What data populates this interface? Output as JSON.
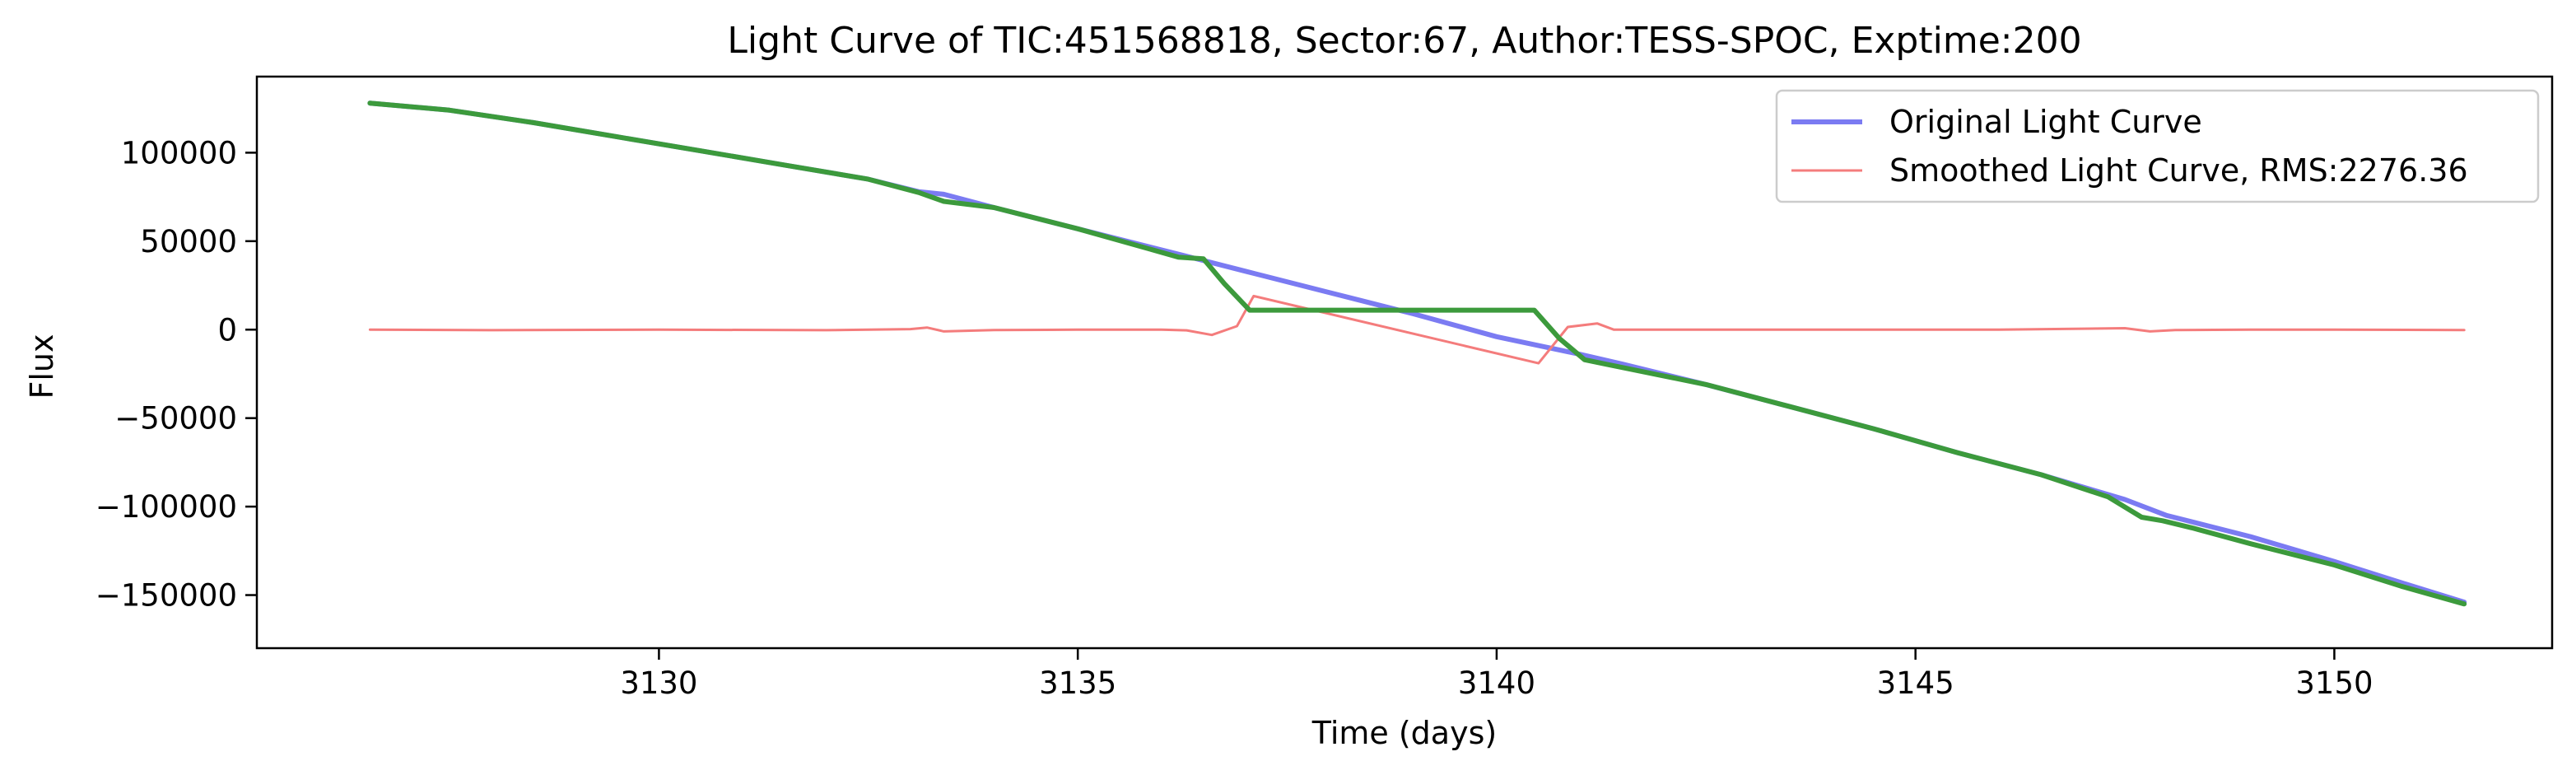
{
  "chart_data": {
    "type": "line",
    "title": "Light Curve of TIC:451568818, Sector:67, Author:TESS-SPOC, Exptime:200",
    "xlabel": "Time (days)",
    "ylabel": "Flux",
    "xlim": [
      3125.2,
      3152.6
    ],
    "ylim": [
      -180000,
      143000
    ],
    "xticks": [
      3130,
      3135,
      3140,
      3145,
      3150
    ],
    "xtick_labels": [
      "3130",
      "3135",
      "3140",
      "3145",
      "3150"
    ],
    "yticks": [
      100000,
      50000,
      0,
      -50000,
      -100000,
      -150000
    ],
    "ytick_labels": [
      "100000",
      "50000",
      "0",
      "−50000",
      "−100000",
      "−150000"
    ],
    "grid": false,
    "legend_position": "top-right",
    "series": [
      {
        "name": "Original Light Curve",
        "color": "#7b7bf2",
        "x": [
          3126.55,
          3127.5,
          3128.5,
          3129.5,
          3130.5,
          3131.5,
          3132.5,
          3133.1,
          3133.4,
          3134.0,
          3135.0,
          3136.3,
          3137.0,
          3138.0,
          3139.0,
          3140.0,
          3141.0,
          3141.5,
          3142.5,
          3143.5,
          3144.5,
          3145.5,
          3146.5,
          3147.5,
          3148.0,
          3149.0,
          3150.0,
          3150.8,
          3151.55
        ],
        "y": [
          128000,
          124000,
          117000,
          109000,
          101000,
          93000,
          85000,
          78000,
          76500,
          69000,
          57000,
          41500,
          33000,
          21000,
          9000,
          -4000,
          -14000,
          -19500,
          -31000,
          -43500,
          -56000,
          -69500,
          -82000,
          -96000,
          -105000,
          -117000,
          -131000,
          -143000,
          -154000
        ]
      },
      {
        "name": "Smoothed Light Curve, RMS:2276.36",
        "color": "#f47c7c",
        "x": [
          3126.55,
          3128.0,
          3130.0,
          3132.0,
          3133.0,
          3133.2,
          3133.4,
          3134.0,
          3135.0,
          3136.0,
          3136.3,
          3136.6,
          3136.9,
          3137.1,
          3140.5,
          3140.85,
          3141.2,
          3141.4,
          3142.0,
          3144.0,
          3146.0,
          3147.5,
          3147.8,
          3148.1,
          3149.0,
          3150.0,
          3151.55
        ],
        "y": [
          0,
          -300,
          0,
          -300,
          300,
          1200,
          -1000,
          -200,
          0,
          0,
          -400,
          -3000,
          2000,
          19000,
          -19000,
          1500,
          3500,
          0,
          0,
          0,
          0,
          800,
          -1000,
          -200,
          0,
          0,
          -200
        ]
      },
      {
        "name": "",
        "color": "#3c9a3c",
        "x": [
          3126.55,
          3127.5,
          3128.5,
          3129.5,
          3130.5,
          3131.5,
          3132.5,
          3133.1,
          3133.4,
          3134.0,
          3135.0,
          3136.2,
          3136.5,
          3136.75,
          3137.05,
          3138.0,
          3139.0,
          3140.0,
          3140.45,
          3140.75,
          3141.05,
          3141.3,
          3142.5,
          3143.5,
          3144.5,
          3145.5,
          3146.5,
          3147.3,
          3147.7,
          3147.95,
          3148.3,
          3149.0,
          3150.0,
          3150.8,
          3151.55
        ],
        "y": [
          128000,
          124000,
          117000,
          109000,
          101000,
          93000,
          85000,
          77500,
          72500,
          69000,
          57000,
          41000,
          40000,
          26000,
          11000,
          11000,
          11000,
          11000,
          11000,
          -5000,
          -17000,
          -19500,
          -31000,
          -43500,
          -56000,
          -69500,
          -82000,
          -94500,
          -106000,
          -108000,
          -112000,
          -121000,
          -133000,
          -145000,
          -155000
        ]
      }
    ]
  }
}
